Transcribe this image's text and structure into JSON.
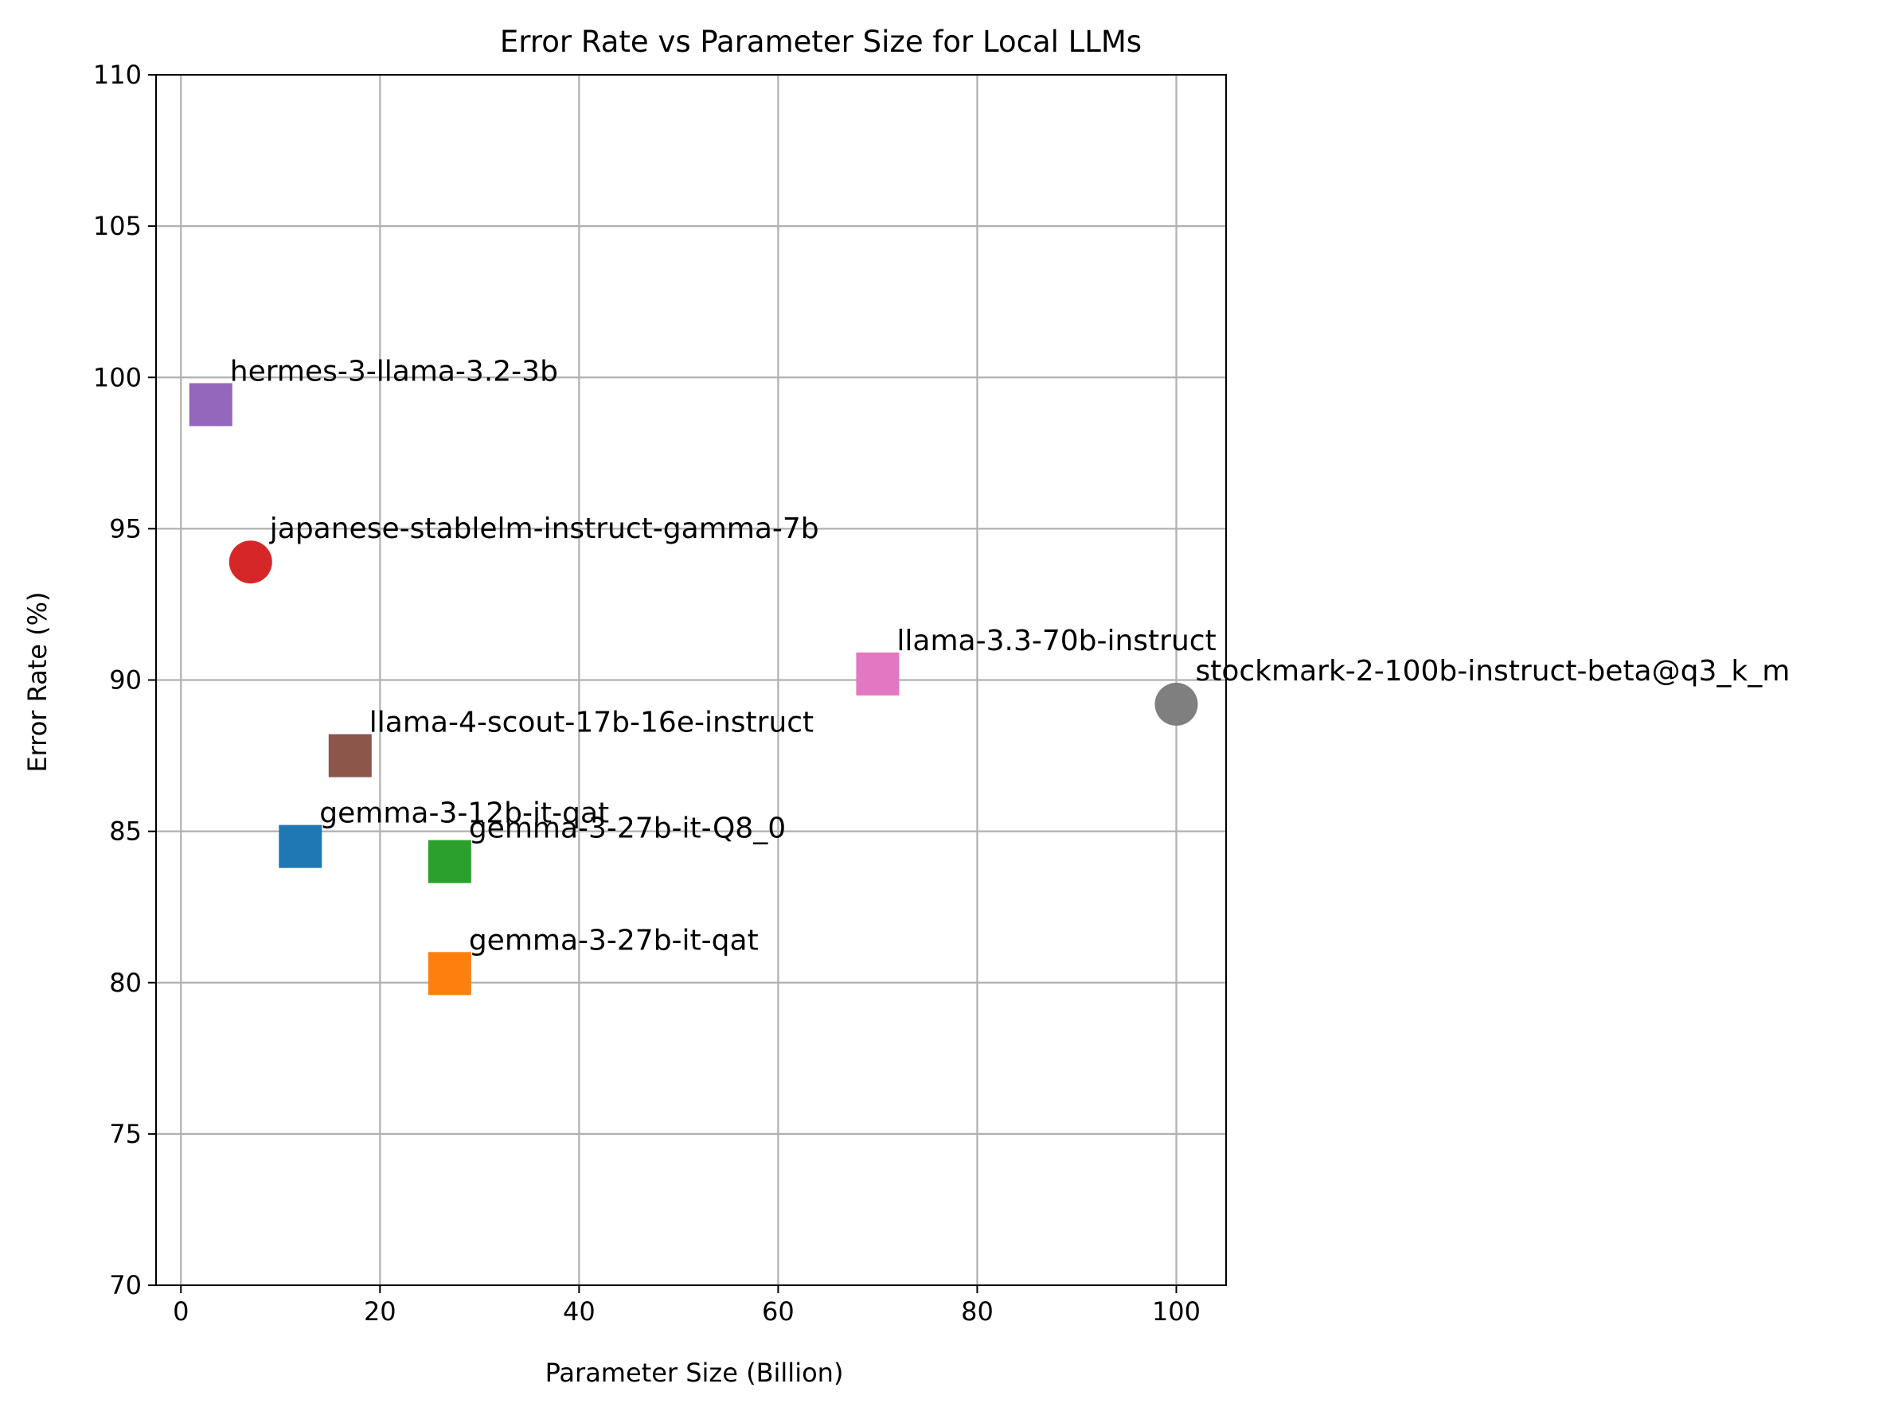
{
  "chart_data": {
    "type": "scatter",
    "title": "Error Rate vs Parameter Size for Local LLMs",
    "xlabel": "Parameter Size (Billion)",
    "ylabel": "Error Rate (%)",
    "xlim": [
      -2.5,
      105
    ],
    "ylim": [
      70,
      110
    ],
    "xticks": [
      0,
      20,
      40,
      60,
      80,
      100
    ],
    "yticks": [
      70,
      75,
      80,
      85,
      90,
      95,
      100,
      105,
      110
    ],
    "grid": true,
    "points": [
      {
        "label": "gemma-3-12b-it-qat",
        "x": 12,
        "y": 84.5,
        "marker": "square",
        "color": "#1f77b4"
      },
      {
        "label": "gemma-3-27b-it-qat",
        "x": 27,
        "y": 80.3,
        "marker": "square",
        "color": "#ff7f0e"
      },
      {
        "label": "gemma-3-27b-it-Q8_0",
        "x": 27,
        "y": 84.0,
        "marker": "square",
        "color": "#2ca02c"
      },
      {
        "label": "japanese-stablelm-instruct-gamma-7b",
        "x": 7,
        "y": 93.9,
        "marker": "circle",
        "color": "#d62728"
      },
      {
        "label": "hermes-3-llama-3.2-3b",
        "x": 3,
        "y": 99.1,
        "marker": "square",
        "color": "#9467bd"
      },
      {
        "label": "llama-4-scout-17b-16e-instruct",
        "x": 17,
        "y": 87.5,
        "marker": "square",
        "color": "#8c564b"
      },
      {
        "label": "llama-3.3-70b-instruct",
        "x": 70,
        "y": 90.2,
        "marker": "square",
        "color": "#e377c2"
      },
      {
        "label": "stockmark-2-100b-instruct-beta@q3_k_m",
        "x": 100,
        "y": 89.2,
        "marker": "circle",
        "color": "#7f7f7f"
      }
    ]
  }
}
